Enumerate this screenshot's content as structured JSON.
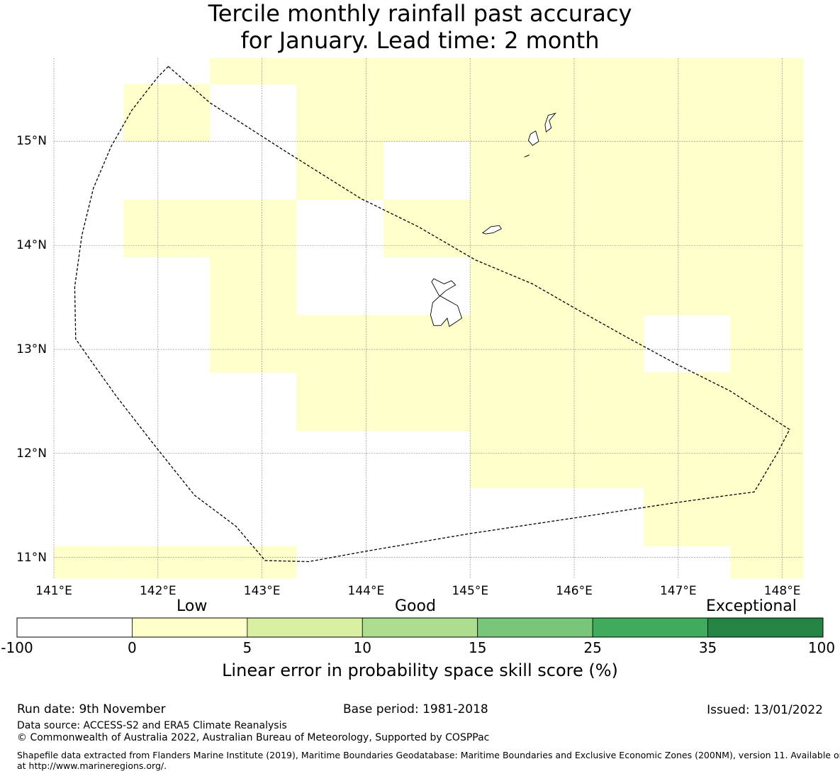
{
  "title": {
    "line1": "Tercile monthly rainfall past accuracy",
    "line2": "for January. Lead time: 2 month"
  },
  "map": {
    "lon_range": [
      141,
      148.2
    ],
    "lat_range": [
      10.8,
      15.8
    ],
    "lon_ticks": [
      {
        "value": 141,
        "label": "141°E"
      },
      {
        "value": 142,
        "label": "142°E"
      },
      {
        "value": 143,
        "label": "143°E"
      },
      {
        "value": 144,
        "label": "144°E"
      },
      {
        "value": 145,
        "label": "145°E"
      },
      {
        "value": 146,
        "label": "146°E"
      },
      {
        "value": 147,
        "label": "147°E"
      },
      {
        "value": 148,
        "label": "148°E"
      }
    ],
    "lat_ticks": [
      {
        "value": 15,
        "label": "15°N"
      },
      {
        "value": 14,
        "label": "14°N"
      },
      {
        "value": 13,
        "label": "13°N"
      },
      {
        "value": 12,
        "label": "12°N"
      },
      {
        "value": 11,
        "label": "11°N"
      }
    ],
    "low_skill_color": "#ffffcc",
    "low_skill_cells": [
      [
        142.5,
        148.2,
        15.55,
        15.8
      ],
      [
        141.67,
        142.5,
        15.0,
        15.55
      ],
      [
        143.33,
        148.2,
        15.0,
        15.55
      ],
      [
        143.33,
        144.17,
        14.44,
        15.0
      ],
      [
        145.0,
        148.2,
        14.44,
        15.0
      ],
      [
        141.67,
        143.33,
        13.89,
        14.44
      ],
      [
        144.17,
        148.2,
        13.89,
        14.44
      ],
      [
        142.5,
        143.33,
        13.33,
        13.89
      ],
      [
        145.0,
        148.2,
        13.33,
        13.89
      ],
      [
        142.5,
        146.67,
        12.78,
        13.33
      ],
      [
        147.5,
        148.2,
        12.78,
        13.33
      ],
      [
        143.33,
        148.2,
        12.22,
        12.78
      ],
      [
        145.0,
        148.2,
        11.67,
        12.22
      ],
      [
        146.67,
        148.2,
        11.11,
        11.67
      ],
      [
        141.0,
        143.33,
        10.8,
        11.11
      ],
      [
        147.5,
        148.2,
        10.8,
        11.11
      ]
    ],
    "eez_boundary": [
      [
        142.1,
        15.72
      ],
      [
        142.0,
        15.62
      ],
      [
        141.75,
        15.3
      ],
      [
        141.55,
        14.95
      ],
      [
        141.38,
        14.55
      ],
      [
        141.27,
        14.1
      ],
      [
        141.2,
        13.6
      ],
      [
        141.21,
        13.1
      ],
      [
        141.35,
        12.9
      ],
      [
        141.6,
        12.55
      ],
      [
        141.95,
        12.1
      ],
      [
        142.35,
        11.6
      ],
      [
        142.75,
        11.3
      ],
      [
        143.03,
        10.97
      ],
      [
        143.45,
        10.96
      ],
      [
        144.0,
        11.06
      ],
      [
        145.0,
        11.23
      ],
      [
        146.0,
        11.38
      ],
      [
        147.0,
        11.53
      ],
      [
        147.5,
        11.6
      ],
      [
        147.73,
        11.63
      ],
      [
        147.95,
        12.0
      ],
      [
        148.07,
        12.23
      ],
      [
        147.5,
        12.6
      ],
      [
        147.0,
        12.85
      ],
      [
        146.5,
        13.12
      ],
      [
        146.0,
        13.4
      ],
      [
        145.6,
        13.63
      ],
      [
        145.05,
        13.86
      ],
      [
        144.5,
        14.18
      ],
      [
        143.95,
        14.45
      ],
      [
        143.2,
        14.92
      ],
      [
        142.5,
        15.37
      ],
      [
        142.1,
        15.72
      ]
    ],
    "islands": [
      [
        [
          144.63,
          13.65
        ],
        [
          144.7,
          13.52
        ],
        [
          144.88,
          13.42
        ],
        [
          144.92,
          13.3
        ],
        [
          144.8,
          13.22
        ],
        [
          144.78,
          13.3
        ],
        [
          144.72,
          13.23
        ],
        [
          144.65,
          13.23
        ],
        [
          144.62,
          13.33
        ],
        [
          144.64,
          13.45
        ],
        [
          144.76,
          13.56
        ],
        [
          144.86,
          13.62
        ],
        [
          144.82,
          13.66
        ],
        [
          144.75,
          13.63
        ],
        [
          144.65,
          13.68
        ],
        [
          144.63,
          13.65
        ]
      ],
      [
        [
          145.12,
          14.12
        ],
        [
          145.2,
          14.18
        ],
        [
          145.28,
          14.19
        ],
        [
          145.3,
          14.16
        ],
        [
          145.22,
          14.12
        ],
        [
          145.15,
          14.11
        ],
        [
          145.12,
          14.12
        ]
      ],
      [
        [
          145.6,
          14.96
        ],
        [
          145.66,
          15.0
        ],
        [
          145.63,
          15.1
        ],
        [
          145.58,
          15.07
        ],
        [
          145.56,
          15.01
        ],
        [
          145.6,
          14.96
        ]
      ],
      [
        [
          145.55,
          14.86
        ],
        [
          145.57,
          14.87
        ],
        [
          145.52,
          14.85
        ],
        [
          145.55,
          14.86
        ]
      ],
      [
        [
          145.73,
          15.09
        ],
        [
          145.78,
          15.13
        ],
        [
          145.76,
          15.2
        ],
        [
          145.82,
          15.27
        ],
        [
          145.75,
          15.25
        ],
        [
          145.72,
          15.16
        ],
        [
          145.73,
          15.09
        ]
      ]
    ]
  },
  "colorbar": {
    "categories": {
      "low": "Low",
      "good": "Good",
      "exceptional": "Exceptional"
    },
    "bins": [
      {
        "from": -100,
        "to": 0,
        "color": "#ffffff"
      },
      {
        "from": 0,
        "to": 5,
        "color": "#ffffcc"
      },
      {
        "from": 5,
        "to": 10,
        "color": "#d9f0a3"
      },
      {
        "from": 10,
        "to": 15,
        "color": "#addd8e"
      },
      {
        "from": 15,
        "to": 25,
        "color": "#78c679"
      },
      {
        "from": 25,
        "to": 35,
        "color": "#41ab5d"
      },
      {
        "from": 35,
        "to": 100,
        "color": "#238443"
      }
    ],
    "tick_labels": [
      "-100",
      "0",
      "5",
      "10",
      "15",
      "25",
      "35",
      "100"
    ],
    "label": "Linear error in probability space skill score (%)"
  },
  "footer": {
    "run_date": "Run date: 9th November",
    "base_period": "Base period: 1981-2018",
    "issued": "Issued: 13/01/2022",
    "data_source": "Data source: ACCESS-S2 and ERA5 Climate Reanalysis",
    "copyright": "© Commonwealth of Australia 2022, Australian Bureau of Meteorology, Supported by COSPPac",
    "shapefile_line1": "Shapefile data extracted from Flanders Marine Institute (2019), Maritime Boundaries Geodatabase: Maritime Boundaries and Exclusive Economic Zones (200NM), version 11. Available online",
    "shapefile_line2": "at http://www.marineregions.org/."
  }
}
